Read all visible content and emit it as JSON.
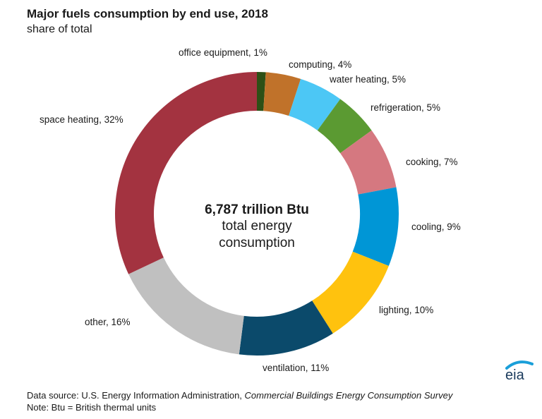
{
  "chart_data": {
    "type": "pie",
    "donut": true,
    "title": "Major fuels consumption by end use, 2018",
    "subtitle": "share of total",
    "unit": "%",
    "categories": [
      "office equipment",
      "computing",
      "water heating",
      "refrigeration",
      "cooking",
      "cooling",
      "lighting",
      "ventilation",
      "other",
      "space heating"
    ],
    "values": [
      1,
      4,
      5,
      5,
      7,
      9,
      10,
      11,
      16,
      32
    ],
    "labels": [
      "office equipment, 1%",
      "computing, 4%",
      "water heating, 5%",
      "refrigeration, 5%",
      "cooking, 7%",
      "cooling, 9%",
      "lighting, 10%",
      "ventilation, 11%",
      "other, 16%",
      "space heating, 32%"
    ],
    "colors": [
      "#2d5016",
      "#c0722a",
      "#4cc7f5",
      "#5b9a32",
      "#d57880",
      "#0096d6",
      "#ffc20e",
      "#0b4a6b",
      "#c0c0c0",
      "#a33340"
    ],
    "start": "12 o'clock, clockwise",
    "center_text": {
      "value": "6,787 trillion Btu",
      "line1": "total energy",
      "line2": "consumption"
    }
  },
  "footer": {
    "source_prefix": "Data source: U.S. Energy Information Administration, ",
    "source_title": "Commercial Buildings Energy Consumption Survey",
    "note": "Note: Btu = British thermal units"
  },
  "logo": {
    "text": "eia",
    "arc_color": "#1a9fd9",
    "text_color": "#1a3a5c"
  }
}
